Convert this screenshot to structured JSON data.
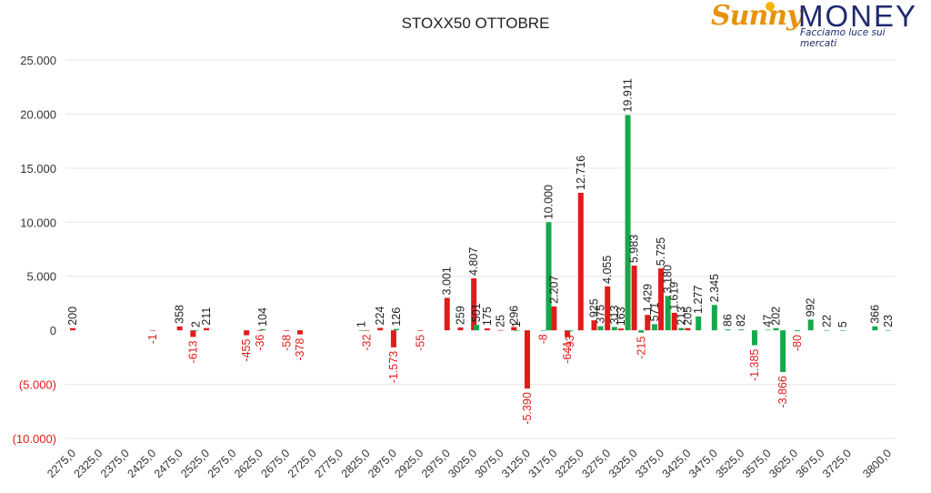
{
  "logo": {
    "brand_first": "Sunny",
    "brand_second": "MONEY",
    "tagline": "Facciamo luce sui mercati"
  },
  "colors": {
    "neg": "#e11b1b",
    "pos": "#17a84b",
    "axis": "#444444",
    "negLabel": "#e11b1b",
    "posLabel": "#222222"
  },
  "chart_data": {
    "type": "bar",
    "title": "STOXX50 OTTOBRE",
    "xlabel": "",
    "ylabel": "",
    "ylim": [
      -10000,
      25000
    ],
    "yticks": [
      {
        "v": 25000,
        "label": "25.000"
      },
      {
        "v": 20000,
        "label": "20.000"
      },
      {
        "v": 15000,
        "label": "15.000"
      },
      {
        "v": 10000,
        "label": "10.000"
      },
      {
        "v": 5000,
        "label": "5.000"
      },
      {
        "v": 0,
        "label": "0"
      },
      {
        "v": -5000,
        "label": "(5.000)"
      },
      {
        "v": -10000,
        "label": "(10.000)"
      }
    ],
    "categories": [
      "2275,0",
      "2325,0",
      "2375,0",
      "2425,0",
      "2475,0",
      "2525,0",
      "2575,0",
      "2625,0",
      "2675,0",
      "2725,0",
      "2775,0",
      "2825,0",
      "2875,0",
      "2925,0",
      "2975,0",
      "3025,0",
      "3075,0",
      "3125,0",
      "3175,0",
      "3225,0",
      "3275,0",
      "3325,0",
      "3375,0",
      "3425,0",
      "3475,0",
      "3525,0",
      "3575,0",
      "3625,0",
      "3675,0",
      "3725,0",
      "3800,0"
    ],
    "xmin": 2275,
    "xmax": 3800,
    "series": [
      {
        "name": "",
        "color": "#e11b1b",
        "points": [
          {
            "x": 2275,
            "y": 200,
            "label": "200"
          },
          {
            "x": 2425,
            "y": -1,
            "label": "-1"
          },
          {
            "x": 2475,
            "y": 358,
            "label": "358"
          },
          {
            "x": 2500,
            "y": -613,
            "label": "-613"
          },
          {
            "x": 2525,
            "y": 211,
            "label": "211"
          },
          {
            "x": 2600,
            "y": -455,
            "label": "-455"
          },
          {
            "x": 2625,
            "y": -36,
            "label": "-36"
          },
          {
            "x": 2675,
            "y": -58,
            "label": "-58"
          },
          {
            "x": 2700,
            "y": -378,
            "label": "-378"
          },
          {
            "x": 2825,
            "y": -32,
            "label": "-32"
          },
          {
            "x": 2850,
            "y": 224,
            "label": "224"
          },
          {
            "x": 2875,
            "y": -1573,
            "label": "-1.573"
          },
          {
            "x": 2925,
            "y": -55,
            "label": "-55"
          },
          {
            "x": 2975,
            "y": 3001,
            "label": "3.001"
          },
          {
            "x": 3000,
            "y": 259,
            "label": "259"
          },
          {
            "x": 3025,
            "y": 4807,
            "label": "4.807"
          },
          {
            "x": 3050,
            "y": 175,
            "label": "175"
          },
          {
            "x": 3075,
            "y": 25,
            "label": "25"
          },
          {
            "x": 3100,
            "y": 296,
            "label": "296"
          },
          {
            "x": 3125,
            "y": -5390,
            "label": "-5.390"
          },
          {
            "x": 3175,
            "y": 2207,
            "label": "2.207"
          },
          {
            "x": 3200,
            "y": -641,
            "label": "-641"
          },
          {
            "x": 3225,
            "y": 12716,
            "label": "12.716"
          },
          {
            "x": 3250,
            "y": 925,
            "label": "925"
          },
          {
            "x": 3275,
            "y": 4055,
            "label": "4.055"
          },
          {
            "x": 3300,
            "y": 163,
            "label": "163"
          },
          {
            "x": 3325,
            "y": 5983,
            "label": "5.983"
          },
          {
            "x": 3350,
            "y": 1429,
            "label": "1.429"
          },
          {
            "x": 3375,
            "y": 5725,
            "label": "5.725"
          },
          {
            "x": 3400,
            "y": 1619,
            "label": "1.619"
          },
          {
            "x": 3425,
            "y": 205,
            "label": "205"
          }
        ]
      },
      {
        "name": "",
        "color": "#17a84b",
        "points": [
          {
            "x": 2815,
            "y": 1,
            "label": "1"
          },
          {
            "x": 2505,
            "y": 2,
            "label": "2"
          },
          {
            "x": 2630,
            "y": 104,
            "label": "104"
          },
          {
            "x": 2880,
            "y": 126,
            "label": "126"
          },
          {
            "x": 3030,
            "y": 501,
            "label": "501"
          },
          {
            "x": 3105,
            "y": 1,
            "label": "1"
          },
          {
            "x": 3155,
            "y": -8,
            "label": "-8"
          },
          {
            "x": 3165,
            "y": 10000,
            "label": "10.000"
          },
          {
            "x": 3205,
            "y": -93,
            "label": "-93"
          },
          {
            "x": 3262,
            "y": 375,
            "label": "375"
          },
          {
            "x": 3288,
            "y": 313,
            "label": "313"
          },
          {
            "x": 3313,
            "y": 19911,
            "label": "19.911"
          },
          {
            "x": 3338,
            "y": -215,
            "label": "-215"
          },
          {
            "x": 3363,
            "y": 571,
            "label": "571"
          },
          {
            "x": 3388,
            "y": 3180,
            "label": "3.180"
          },
          {
            "x": 3413,
            "y": 213,
            "label": "213"
          },
          {
            "x": 3445,
            "y": 1277,
            "label": "1.277"
          },
          {
            "x": 3475,
            "y": 2345,
            "label": "2.345"
          },
          {
            "x": 3500,
            "y": 86,
            "label": "86"
          },
          {
            "x": 3525,
            "y": 82,
            "label": "82"
          },
          {
            "x": 3550,
            "y": -1385,
            "label": "-1.385"
          },
          {
            "x": 3575,
            "y": 47,
            "label": "47"
          },
          {
            "x": 3590,
            "y": 202,
            "label": "202"
          },
          {
            "x": 3603,
            "y": -3866,
            "label": "-3.866"
          },
          {
            "x": 3630,
            "y": -80,
            "label": "-80"
          },
          {
            "x": 3655,
            "y": 992,
            "label": "992"
          },
          {
            "x": 3685,
            "y": 22,
            "label": "22"
          },
          {
            "x": 3715,
            "y": 5,
            "label": "5"
          },
          {
            "x": 3775,
            "y": 366,
            "label": "366"
          },
          {
            "x": 3800,
            "y": 23,
            "label": "23"
          }
        ]
      }
    ],
    "grid": true,
    "legend": "none"
  }
}
